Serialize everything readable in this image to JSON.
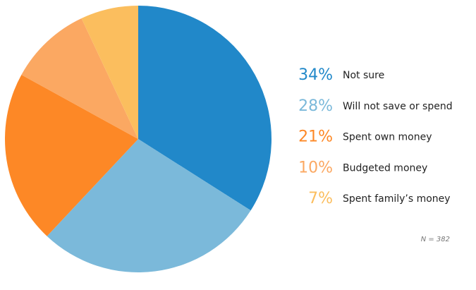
{
  "chart_data": {
    "type": "pie",
    "categories": [
      "Not sure",
      "Will not save or spend",
      "Spent own money",
      "Budgeted money",
      "Spent family’s money"
    ],
    "values": [
      34,
      28,
      21,
      10,
      7
    ],
    "value_labels": [
      "34%",
      "28%",
      "21%",
      "10%",
      "7%"
    ],
    "colors": [
      "#2188c9",
      "#7bb9da",
      "#fd8826",
      "#fba862",
      "#fbbe5e"
    ],
    "note": "N = 382"
  }
}
